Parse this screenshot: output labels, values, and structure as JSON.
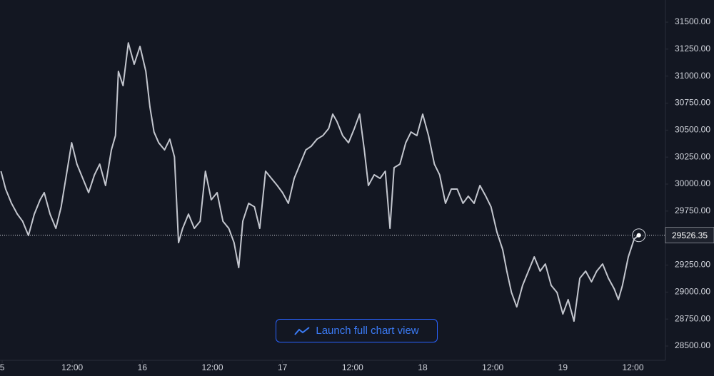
{
  "chart_data": {
    "type": "line",
    "x": [
      -0.2,
      0.6,
      1.6,
      2.6,
      3.5,
      4.5,
      5.5,
      6.5,
      7.2,
      8.2,
      9.2,
      10.1,
      11.1,
      11.9,
      12.8,
      13.8,
      14.8,
      15.8,
      16.7,
      17.7,
      18.7,
      19.4,
      19.9,
      20.7,
      21.6,
      22.6,
      23.6,
      24.6,
      25.3,
      26.0,
      26.8,
      27.8,
      28.7,
      29.5,
      30.2,
      30.9,
      31.9,
      32.9,
      33.9,
      34.8,
      35.8,
      36.8,
      37.8,
      38.8,
      39.7,
      40.5,
      41.2,
      42.2,
      43.2,
      44.1,
      45.1,
      46.1,
      47.1,
      48.0,
      49.0,
      50.0,
      51.0,
      52.0,
      52.9,
      53.9,
      54.9,
      55.9,
      56.6,
      57.3,
      58.3,
      59.3,
      60.3,
      61.2,
      62.0,
      62.7,
      63.7,
      64.7,
      65.6,
      66.4,
      67.1,
      68.1,
      69.1,
      70.0,
      71.0,
      72.0,
      73.0,
      74.0,
      74.9,
      75.9,
      76.9,
      77.9,
      78.9,
      79.8,
      80.8,
      81.8,
      82.8,
      83.7,
      84.7,
      85.7,
      86.4,
      87.2,
      88.1,
      89.1,
      90.1,
      91.1,
      92.1,
      93.0,
      94.0,
      95.0,
      96.0,
      96.9,
      97.9,
      98.9,
      99.9,
      100.9,
      101.8,
      102.8,
      103.8,
      104.8,
      105.5,
      106.2,
      107.2,
      108.2,
      109.0
    ],
    "series": [
      {
        "color": "#c3c6ce",
        "values": [
          30119,
          29954,
          29822,
          29722,
          29656,
          29524,
          29722,
          29855,
          29921,
          29722,
          29590,
          29789,
          30119,
          30383,
          30185,
          30053,
          29921,
          30086,
          30185,
          29987,
          30317,
          30449,
          31044,
          30912,
          31308,
          31110,
          31275,
          31044,
          30714,
          30482,
          30383,
          30317,
          30416,
          30251,
          29458,
          29590,
          29722,
          29590,
          29656,
          30119,
          29855,
          29921,
          29656,
          29590,
          29458,
          29227,
          29656,
          29822,
          29789,
          29590,
          30119,
          30053,
          29987,
          29921,
          29822,
          30053,
          30185,
          30317,
          30350,
          30416,
          30449,
          30515,
          30648,
          30582,
          30449,
          30383,
          30515,
          30648,
          30317,
          29987,
          30086,
          30053,
          30119,
          29590,
          30152,
          30185,
          30383,
          30482,
          30449,
          30648,
          30449,
          30185,
          30086,
          29822,
          29954,
          29954,
          29822,
          29888,
          29822,
          29987,
          29888,
          29789,
          29557,
          29392,
          29194,
          28996,
          28863,
          29062,
          29194,
          29326,
          29194,
          29260,
          29062,
          28996,
          28797,
          28930,
          28731,
          29128,
          29194,
          29095,
          29194,
          29260,
          29128,
          29029,
          28930,
          29062,
          29326,
          29491,
          29526.35
        ]
      }
    ],
    "price_line": 29526.35,
    "xlim": [
      -0.37,
      113.56
    ],
    "xticks": [
      {
        "value": 0,
        "label": "5"
      },
      {
        "value": 12,
        "label": "12:00"
      },
      {
        "value": 24,
        "label": "16"
      },
      {
        "value": 36,
        "label": "12:00"
      },
      {
        "value": 48,
        "label": "17"
      },
      {
        "value": 60,
        "label": "12:00"
      },
      {
        "value": 72,
        "label": "18"
      },
      {
        "value": 84,
        "label": "12:00"
      },
      {
        "value": 96,
        "label": "19"
      },
      {
        "value": 108,
        "label": "12:00"
      }
    ],
    "ylim": [
      28368,
      31705
    ],
    "yticks": [
      {
        "value": 28500,
        "label": "28500.00"
      },
      {
        "value": 28750,
        "label": "28750.00"
      },
      {
        "value": 29000,
        "label": "29000.00"
      },
      {
        "value": 29250,
        "label": "29250.00"
      },
      {
        "value": 29500,
        "label": "29500.00"
      },
      {
        "value": 29750,
        "label": "29750.00"
      },
      {
        "value": 30000,
        "label": "30000.00"
      },
      {
        "value": 30250,
        "label": "30250.00"
      },
      {
        "value": 30500,
        "label": "30500.00"
      },
      {
        "value": 30750,
        "label": "30750.00"
      },
      {
        "value": 31000,
        "label": "31000.00"
      },
      {
        "value": 31250,
        "label": "31250.00"
      },
      {
        "value": 31500,
        "label": "31500.00"
      }
    ],
    "grid": false
  },
  "button": {
    "label": "Launch full chart view"
  }
}
